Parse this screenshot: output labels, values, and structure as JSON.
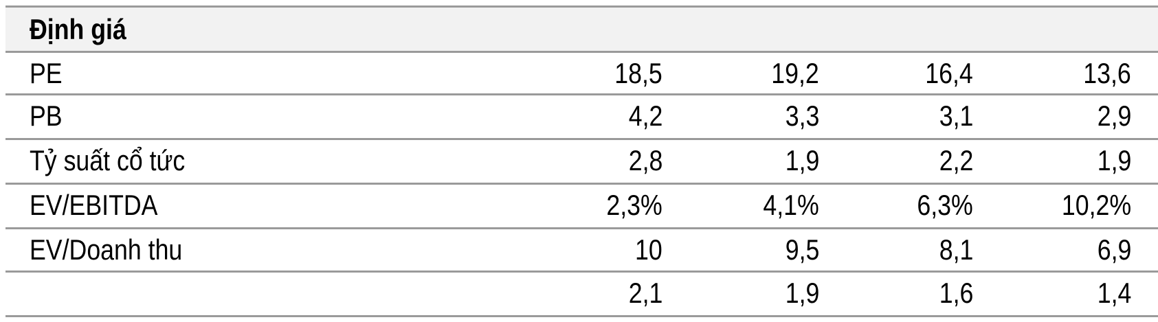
{
  "table": {
    "title": "Định giá",
    "rows": [
      {
        "label": "PE",
        "values": [
          "18,5",
          "19,2",
          "16,4",
          "13,6"
        ]
      },
      {
        "label": "PB",
        "values": [
          "4,2",
          "3,3",
          "3,1",
          "2,9"
        ]
      },
      {
        "label": "Tỷ suất cổ tức",
        "values": [
          "2,8",
          "1,9",
          "2,2",
          "1,9"
        ]
      },
      {
        "label": "EV/EBITDA",
        "values": [
          "2,3%",
          "4,1%",
          "6,3%",
          "10,2%"
        ]
      },
      {
        "label": "EV/Doanh thu",
        "values": [
          "10",
          "9,5",
          "8,1",
          "6,9"
        ]
      },
      {
        "label": null,
        "values": [
          "2,1",
          "1,9",
          "1,6",
          "1,4"
        ]
      }
    ]
  }
}
